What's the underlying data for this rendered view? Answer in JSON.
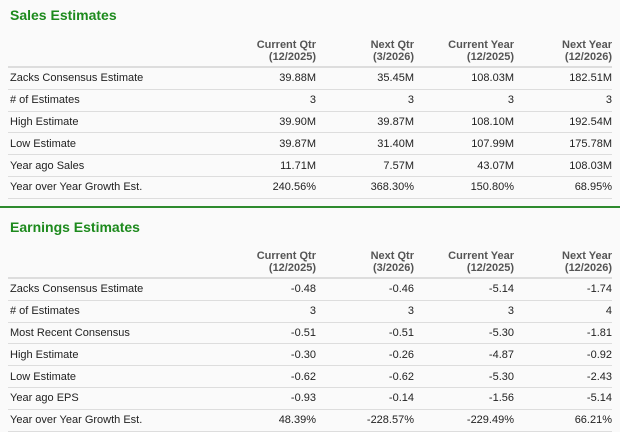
{
  "columns": [
    {
      "line1": "Current Qtr",
      "line2": "(12/2025)"
    },
    {
      "line1": "Next Qtr",
      "line2": "(3/2026)"
    },
    {
      "line1": "Current Year",
      "line2": "(12/2025)"
    },
    {
      "line1": "Next Year",
      "line2": "(12/2026)"
    }
  ],
  "sales": {
    "title": "Sales Estimates",
    "rows": [
      {
        "label": "Zacks Consensus Estimate",
        "values": [
          "39.88M",
          "35.45M",
          "108.03M",
          "182.51M"
        ]
      },
      {
        "label": "# of Estimates",
        "values": [
          "3",
          "3",
          "3",
          "3"
        ]
      },
      {
        "label": "High Estimate",
        "values": [
          "39.90M",
          "39.87M",
          "108.10M",
          "192.54M"
        ]
      },
      {
        "label": "Low Estimate",
        "values": [
          "39.87M",
          "31.40M",
          "107.99M",
          "175.78M"
        ]
      },
      {
        "label": "Year ago Sales",
        "values": [
          "11.71M",
          "7.57M",
          "43.07M",
          "108.03M"
        ]
      },
      {
        "label": "Year over Year Growth Est.",
        "values": [
          "240.56%",
          "368.30%",
          "150.80%",
          "68.95%"
        ]
      }
    ]
  },
  "earnings": {
    "title": "Earnings Estimates",
    "rows": [
      {
        "label": "Zacks Consensus Estimate",
        "values": [
          "-0.48",
          "-0.46",
          "-5.14",
          "-1.74"
        ]
      },
      {
        "label": "# of Estimates",
        "values": [
          "3",
          "3",
          "3",
          "4"
        ]
      },
      {
        "label": "Most Recent Consensus",
        "values": [
          "-0.51",
          "-0.51",
          "-5.30",
          "-1.81"
        ]
      },
      {
        "label": "High Estimate",
        "values": [
          "-0.30",
          "-0.26",
          "-4.87",
          "-0.92"
        ]
      },
      {
        "label": "Low Estimate",
        "values": [
          "-0.62",
          "-0.62",
          "-5.30",
          "-2.43"
        ]
      },
      {
        "label": "Year ago EPS",
        "values": [
          "-0.93",
          "-0.14",
          "-1.56",
          "-5.14"
        ]
      },
      {
        "label": "Year over Year Growth Est.",
        "values": [
          "48.39%",
          "-228.57%",
          "-229.49%",
          "66.21%"
        ]
      }
    ]
  }
}
